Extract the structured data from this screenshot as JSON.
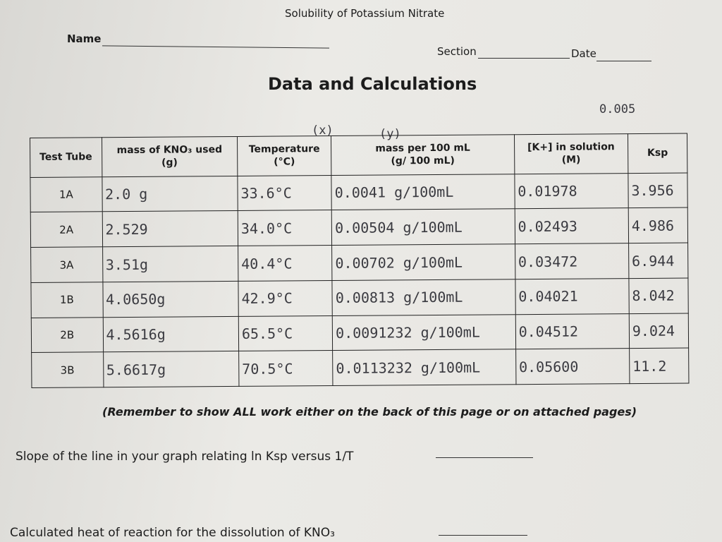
{
  "header": {
    "title": "Solubility of Potassium Nitrate",
    "name_label": "Name",
    "section_label": "Section",
    "date_label": "Date",
    "heading": "Data and Calculations"
  },
  "notes": {
    "top_right": "0.005",
    "x_mark": "(x)",
    "y_mark": "(y)"
  },
  "table": {
    "columns": [
      [
        "Test Tube"
      ],
      [
        "mass of KNO₃ used",
        "(g)"
      ],
      [
        "Temperature",
        "(°C)"
      ],
      [
        "mass per 100 mL",
        "(g/ 100 mL)"
      ],
      [
        "[K+] in solution",
        "(M)"
      ],
      [
        "Ksp"
      ]
    ],
    "rows": [
      [
        "1A",
        "2.0 g",
        "33.6°C",
        "0.0041 g/100mL",
        "0.01978",
        "3.956"
      ],
      [
        "2A",
        "2.529",
        "34.0°C",
        "0.00504 g/100mL",
        "0.02493",
        "4.986"
      ],
      [
        "3A",
        "3.51g",
        "40.4°C",
        "0.00702 g/100mL",
        "0.03472",
        "6.944"
      ],
      [
        "1B",
        "4.0650g",
        "42.9°C",
        "0.00813 g/100mL",
        "0.04021",
        "8.042"
      ],
      [
        "2B",
        "4.5616g",
        "65.5°C",
        "0.0091232 g/100mL",
        "0.04512",
        "9.024"
      ],
      [
        "3B",
        "5.6617g",
        "70.5°C",
        "0.0113232 g/100mL",
        "0.05600",
        "11.2"
      ]
    ]
  },
  "footer": {
    "reminder": "(Remember to show ALL work either on the back of this page or on attached pages)",
    "slope": "Slope of the line in your graph relating ln Ksp versus 1/T",
    "heat": "Calculated heat of reaction for the dissolution of KNO₃"
  }
}
